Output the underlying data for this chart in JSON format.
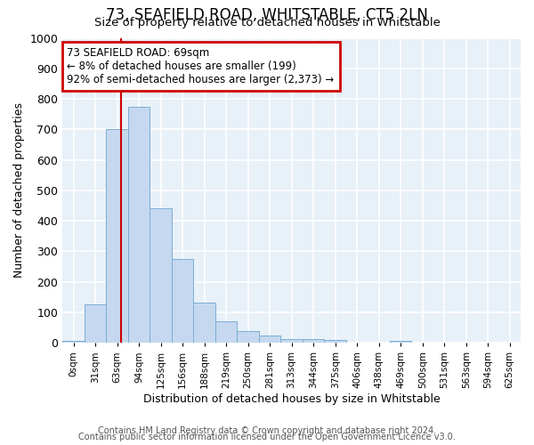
{
  "title": "73, SEAFIELD ROAD, WHITSTABLE, CT5 2LN",
  "subtitle": "Size of property relative to detached houses in Whitstable",
  "xlabel": "Distribution of detached houses by size in Whitstable",
  "ylabel": "Number of detached properties",
  "bar_labels": [
    "0sqm",
    "31sqm",
    "63sqm",
    "94sqm",
    "125sqm",
    "156sqm",
    "188sqm",
    "219sqm",
    "250sqm",
    "281sqm",
    "313sqm",
    "344sqm",
    "375sqm",
    "406sqm",
    "438sqm",
    "469sqm",
    "500sqm",
    "531sqm",
    "563sqm",
    "594sqm",
    "625sqm"
  ],
  "bar_values": [
    8,
    125,
    700,
    775,
    440,
    275,
    133,
    70,
    38,
    25,
    12,
    12,
    10,
    0,
    0,
    8,
    0,
    0,
    0,
    0,
    0
  ],
  "bar_color": "#c5d8ef",
  "bar_edge_color": "#7aaed4",
  "bg_color": "#e8f0f8",
  "grid_color": "#ffffff",
  "annotation_text": "73 SEAFIELD ROAD: 69sqm\n← 8% of detached houses are smaller (199)\n92% of semi-detached houses are larger (2,373) →",
  "annotation_box_color": "#ffffff",
  "annotation_box_edge": "#cc0000",
  "ylim": [
    0,
    1000
  ],
  "footer_line1": "Contains HM Land Registry data © Crown copyright and database right 2024.",
  "footer_line2": "Contains public sector information licensed under the Open Government Licence v3.0."
}
